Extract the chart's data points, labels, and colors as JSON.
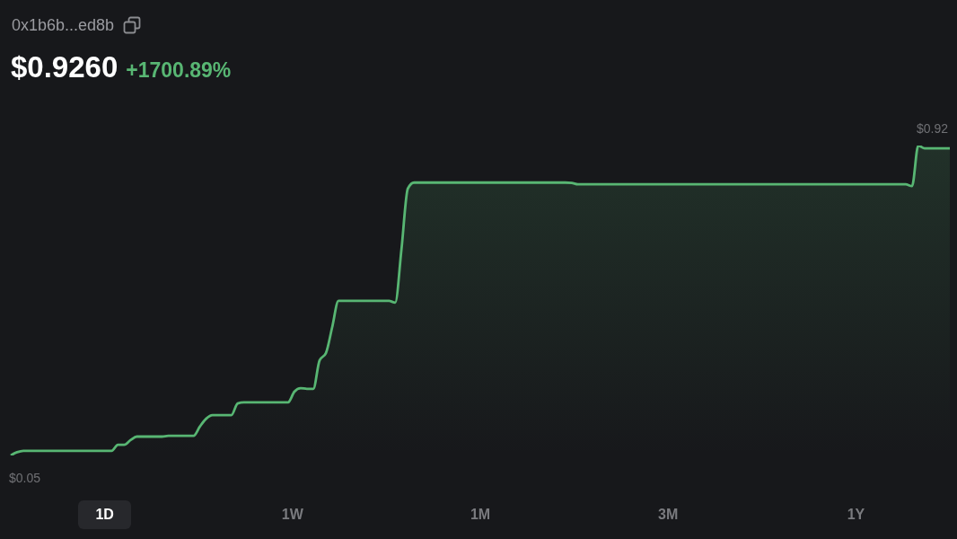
{
  "chart_data": {
    "type": "area",
    "title": "$0.9260",
    "subtitle": "+1700.89%",
    "annotations": [
      "0x1b6b...ed8b",
      "1D",
      "1W",
      "1M",
      "3M",
      "1Y"
    ],
    "color": "#58b673",
    "categories": [
      null,
      null,
      null,
      null,
      null,
      null,
      null,
      null,
      null,
      null,
      null,
      null,
      null,
      null,
      null,
      null,
      null,
      null,
      null,
      null,
      null,
      null,
      null,
      null,
      null,
      null,
      null,
      null,
      null,
      null,
      null,
      null,
      null,
      null,
      null,
      null,
      null,
      null,
      null,
      null,
      null,
      null,
      null,
      null,
      null,
      null,
      null,
      null,
      null,
      null,
      null,
      null,
      null,
      null,
      null,
      null,
      null,
      null,
      null,
      null,
      null,
      null,
      null,
      null,
      null,
      null,
      null,
      null,
      null,
      null,
      null,
      null,
      null,
      null,
      null,
      null,
      null,
      null,
      null,
      null,
      null,
      null,
      null,
      null,
      null,
      null,
      null,
      null,
      null,
      null,
      null,
      null,
      null,
      null,
      null,
      null,
      null,
      null,
      null,
      null,
      null,
      null,
      null,
      null,
      null,
      null,
      null,
      null,
      null,
      null,
      null,
      null,
      null,
      null,
      null,
      null,
      null,
      null,
      null,
      null,
      null,
      null,
      null,
      null,
      null,
      null,
      null,
      null,
      null,
      null,
      null,
      null,
      null,
      null,
      null,
      null,
      null,
      null,
      null,
      null,
      null,
      null,
      null,
      null,
      null,
      null,
      null,
      null,
      null,
      null
    ],
    "values": [
      0.05,
      0.059,
      0.063,
      0.063,
      0.063,
      0.063,
      0.063,
      0.063,
      0.063,
      0.063,
      0.063,
      0.063,
      0.063,
      0.063,
      0.063,
      0.063,
      0.063,
      0.08,
      0.08,
      0.093,
      0.103,
      0.103,
      0.103,
      0.103,
      0.103,
      0.105,
      0.105,
      0.105,
      0.105,
      0.105,
      0.131,
      0.153,
      0.163,
      0.163,
      0.163,
      0.163,
      0.196,
      0.199,
      0.199,
      0.199,
      0.199,
      0.199,
      0.199,
      0.199,
      0.199,
      0.229,
      0.239,
      0.237,
      0.237,
      0.317,
      0.337,
      0.41,
      0.484,
      0.484,
      0.484,
      0.484,
      0.484,
      0.484,
      0.484,
      0.484,
      0.484,
      0.479,
      0.63,
      0.799,
      0.816,
      0.816,
      0.816,
      0.816,
      0.816,
      0.816,
      0.816,
      0.816,
      0.816,
      0.816,
      0.816,
      0.816,
      0.816,
      0.816,
      0.816,
      0.816,
      0.816,
      0.816,
      0.816,
      0.816,
      0.816,
      0.816,
      0.816,
      0.816,
      0.816,
      0.815,
      0.811,
      0.811,
      0.811,
      0.811,
      0.811,
      0.811,
      0.811,
      0.811,
      0.811,
      0.811,
      0.811,
      0.811,
      0.811,
      0.811,
      0.811,
      0.811,
      0.811,
      0.811,
      0.811,
      0.811,
      0.811,
      0.811,
      0.811,
      0.811,
      0.811,
      0.811,
      0.811,
      0.811,
      0.811,
      0.811,
      0.811,
      0.811,
      0.811,
      0.811,
      0.811,
      0.811,
      0.811,
      0.811,
      0.811,
      0.811,
      0.811,
      0.811,
      0.811,
      0.811,
      0.811,
      0.811,
      0.811,
      0.811,
      0.811,
      0.811,
      0.811,
      0.811,
      0.811,
      0.806,
      0.92,
      0.912,
      0.912,
      0.912,
      0.912,
      0.912
    ],
    "value_labels": [
      "$0.05",
      null,
      null,
      null,
      null,
      null,
      null,
      null,
      null,
      null,
      null,
      null,
      null,
      null,
      null,
      null,
      null,
      null,
      null,
      null,
      null,
      null,
      null,
      null,
      null,
      null,
      null,
      null,
      null,
      null,
      null,
      null,
      null,
      null,
      null,
      null,
      null,
      null,
      null,
      null,
      null,
      null,
      null,
      null,
      null,
      null,
      null,
      null,
      null,
      null,
      null,
      null,
      null,
      null,
      null,
      null,
      null,
      null,
      null,
      null,
      null,
      null,
      null,
      null,
      null,
      null,
      null,
      null,
      null,
      null,
      null,
      null,
      null,
      null,
      null,
      null,
      null,
      null,
      null,
      null,
      null,
      null,
      null,
      null,
      null,
      null,
      null,
      null,
      null,
      null,
      null,
      null,
      null,
      null,
      null,
      null,
      null,
      null,
      null,
      null,
      null,
      null,
      null,
      null,
      null,
      null,
      null,
      null,
      null,
      null,
      null,
      null,
      null,
      null,
      null,
      null,
      null,
      null,
      null,
      null,
      null,
      null,
      null,
      null,
      null,
      null,
      null,
      null,
      null,
      null,
      null,
      null,
      null,
      null,
      null,
      null,
      null,
      null,
      null,
      null,
      null,
      null,
      null,
      null,
      "$0.92",
      null,
      null,
      null,
      null,
      null
    ]
  }
}
